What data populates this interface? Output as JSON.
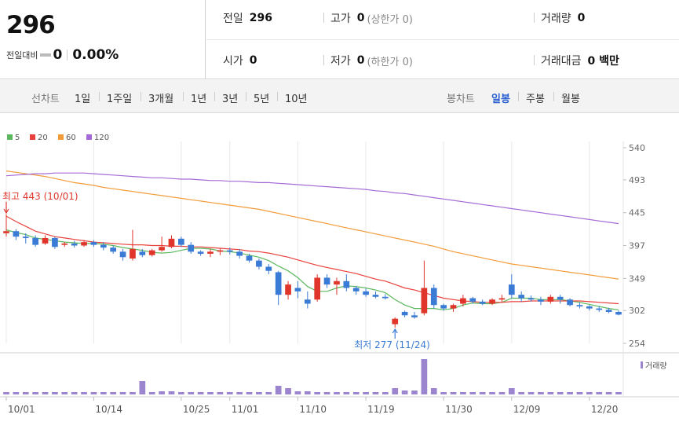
{
  "quote": {
    "current_price": "296",
    "change_label": "전일대비",
    "change_value": "0",
    "change_rate": "0.00%",
    "prev_close_label": "전일",
    "prev_close": "296",
    "high_label": "고가",
    "high": "0",
    "upper_limit": "(상한가 0)",
    "volume_label": "거래량",
    "volume": "0",
    "open_label": "시가",
    "open": "0",
    "low_label": "저가",
    "low": "0",
    "lower_limit": "(하한가 0)",
    "trade_value_label": "거래대금",
    "trade_value": "0 백만"
  },
  "toolbar": {
    "line_chart_label": "선차트",
    "line_ranges": [
      "1일",
      "1주일",
      "3개월",
      "1년",
      "3년",
      "5년",
      "10년"
    ],
    "candle_chart_label": "봉차트",
    "candle_periods": [
      "일봉",
      "주봉",
      "월봉"
    ],
    "active_candle_period": "일봉"
  },
  "colors": {
    "up": "#e0352b",
    "down": "#3a7bd5",
    "ma5": "#5cb85c",
    "ma20": "#e8413c",
    "ma60": "#f29b38",
    "ma120": "#a56ad6",
    "volume": "#9b85cf",
    "grid": "#e8e8e8"
  },
  "chart_data": {
    "type": "candlestick",
    "legend": [
      {
        "label": "5",
        "color": "#5cb85c"
      },
      {
        "label": "20",
        "color": "#e8413c"
      },
      {
        "label": "60",
        "color": "#f29b38"
      },
      {
        "label": "120",
        "color": "#a56ad6"
      }
    ],
    "y_ticks": [
      540,
      493,
      445,
      397,
      349,
      302,
      254
    ],
    "ylim": [
      254,
      540
    ],
    "x_ticks": [
      {
        "label": "10/01",
        "index": 0
      },
      {
        "label": "10/14",
        "index": 9
      },
      {
        "label": "10/25",
        "index": 18
      },
      {
        "label": "11/01",
        "index": 23
      },
      {
        "label": "11/10",
        "index": 30
      },
      {
        "label": "11/19",
        "index": 37
      },
      {
        "label": "11/30",
        "index": 45
      },
      {
        "label": "12/09",
        "index": 52
      },
      {
        "label": "12/20",
        "index": 60
      }
    ],
    "annotations": {
      "high": {
        "text": "최고 443 (10/01)",
        "index": 0,
        "value": 443
      },
      "low": {
        "text": "최저 277 (11/24)",
        "index": 40,
        "value": 277
      }
    },
    "volume_label": "거래량",
    "candles": [
      [
        415,
        443,
        410,
        418
      ],
      [
        418,
        421,
        405,
        410
      ],
      [
        410,
        415,
        400,
        408
      ],
      [
        408,
        412,
        395,
        398
      ],
      [
        400,
        412,
        398,
        408
      ],
      [
        408,
        410,
        392,
        395
      ],
      [
        398,
        402,
        395,
        400
      ],
      [
        400,
        404,
        394,
        397
      ],
      [
        397,
        405,
        395,
        402
      ],
      [
        402,
        405,
        395,
        398
      ],
      [
        398,
        402,
        390,
        394
      ],
      [
        394,
        397,
        385,
        388
      ],
      [
        388,
        392,
        375,
        380
      ],
      [
        378,
        420,
        375,
        392
      ],
      [
        388,
        392,
        380,
        383
      ],
      [
        383,
        392,
        381,
        390
      ],
      [
        390,
        410,
        388,
        395
      ],
      [
        395,
        412,
        393,
        407
      ],
      [
        407,
        410,
        395,
        398
      ],
      [
        398,
        402,
        385,
        388
      ],
      [
        388,
        390,
        382,
        385
      ],
      [
        385,
        392,
        380,
        388
      ],
      [
        388,
        393,
        383,
        390
      ],
      [
        390,
        394,
        384,
        388
      ],
      [
        388,
        392,
        378,
        382
      ],
      [
        382,
        385,
        372,
        375
      ],
      [
        375,
        378,
        362,
        366
      ],
      [
        366,
        370,
        355,
        360
      ],
      [
        358,
        360,
        310,
        325
      ],
      [
        325,
        345,
        318,
        340
      ],
      [
        335,
        345,
        320,
        330
      ],
      [
        318,
        330,
        305,
        312
      ],
      [
        318,
        355,
        315,
        350
      ],
      [
        350,
        355,
        335,
        340
      ],
      [
        340,
        350,
        325,
        345
      ],
      [
        345,
        355,
        330,
        335
      ],
      [
        335,
        338,
        325,
        330
      ],
      [
        330,
        334,
        322,
        325
      ],
      [
        325,
        330,
        320,
        322
      ],
      [
        322,
        326,
        318,
        320
      ],
      [
        282,
        292,
        277,
        290
      ],
      [
        300,
        302,
        292,
        295
      ],
      [
        295,
        300,
        290,
        292
      ],
      [
        298,
        375,
        295,
        335
      ],
      [
        335,
        340,
        305,
        310
      ],
      [
        310,
        312,
        302,
        305
      ],
      [
        305,
        312,
        300,
        310
      ],
      [
        312,
        325,
        308,
        320
      ],
      [
        320,
        322,
        312,
        315
      ],
      [
        315,
        318,
        310,
        312
      ],
      [
        312,
        320,
        310,
        318
      ],
      [
        318,
        325,
        314,
        320
      ],
      [
        340,
        355,
        320,
        325
      ],
      [
        325,
        330,
        315,
        320
      ],
      [
        320,
        324,
        315,
        318
      ],
      [
        318,
        322,
        310,
        315
      ],
      [
        315,
        325,
        312,
        322
      ],
      [
        322,
        325,
        312,
        318
      ],
      [
        318,
        320,
        308,
        310
      ],
      [
        310,
        314,
        305,
        308
      ],
      [
        308,
        310,
        302,
        305
      ],
      [
        305,
        308,
        300,
        303
      ],
      [
        303,
        306,
        298,
        300
      ],
      [
        300,
        302,
        295,
        296
      ]
    ],
    "volume": [
      3,
      3,
      3,
      3,
      3,
      3,
      3,
      3,
      3,
      3,
      3,
      3,
      3,
      3,
      17,
      3,
      4,
      4,
      3,
      3,
      3,
      3,
      3,
      3,
      3,
      3,
      3,
      3,
      11,
      8,
      4,
      4,
      3,
      3,
      3,
      3,
      3,
      3,
      3,
      3,
      8,
      5,
      5,
      45,
      8,
      3,
      3,
      3,
      3,
      3,
      3,
      3,
      8,
      3,
      3,
      3,
      3,
      3,
      3,
      3,
      3,
      3,
      3,
      3
    ],
    "ma": {
      "5": {
        "start": 0,
        "values": [
          420,
          416,
          413,
          408,
          406,
          404,
          402,
          401,
          400,
          400,
          399,
          397,
          394,
          392,
          390,
          387,
          386,
          387,
          390,
          393,
          393,
          392,
          389,
          388,
          386,
          383,
          380,
          375,
          367,
          360,
          350,
          337,
          330,
          330,
          335,
          338,
          337,
          335,
          332,
          328,
          318,
          310,
          305,
          305,
          305,
          303,
          305,
          310,
          313,
          312,
          312,
          314,
          320,
          320,
          320,
          318,
          318,
          318,
          316,
          314,
          311,
          308,
          305,
          303
        ]
      },
      "20": {
        "start": 0,
        "values": [
          440,
          432,
          425,
          418,
          414,
          410,
          408,
          406,
          404,
          402,
          401,
          400,
          399,
          398,
          398,
          397,
          397,
          396,
          396,
          395,
          395,
          394,
          393,
          392,
          391,
          389,
          388,
          386,
          383,
          380,
          376,
          372,
          368,
          365,
          362,
          359,
          356,
          352,
          348,
          345,
          340,
          335,
          332,
          328,
          324,
          320,
          318,
          316,
          315,
          314,
          314,
          314,
          315,
          315,
          316,
          316,
          316,
          316,
          316,
          316,
          315,
          314,
          313,
          312
        ]
      },
      "60": {
        "values": [
          506,
          504,
          502,
          500,
          498,
          495,
          492,
          489,
          487,
          485,
          482,
          480,
          478,
          476,
          474,
          472,
          470,
          468,
          466,
          464,
          462,
          460,
          458,
          456,
          454,
          452,
          450,
          447,
          444,
          441,
          438,
          435,
          432,
          429,
          426,
          423,
          420,
          417,
          414,
          411,
          408,
          405,
          402,
          399,
          396,
          392,
          388,
          385,
          382,
          379,
          376,
          373,
          370,
          368,
          366,
          364,
          362,
          360,
          358,
          356,
          354,
          352,
          350,
          348
        ]
      },
      "120": {
        "values": [
          499,
          500,
          501,
          502,
          502,
          503,
          503,
          503,
          503,
          502,
          501,
          500,
          499,
          498,
          497,
          496,
          496,
          495,
          494,
          494,
          493,
          492,
          492,
          491,
          491,
          490,
          489,
          489,
          488,
          487,
          486,
          485,
          484,
          483,
          482,
          481,
          480,
          479,
          477,
          476,
          474,
          473,
          471,
          469,
          467,
          465,
          463,
          461,
          459,
          457,
          455,
          453,
          451,
          449,
          447,
          445,
          443,
          441,
          439,
          437,
          435,
          433,
          431,
          429
        ]
      }
    }
  }
}
